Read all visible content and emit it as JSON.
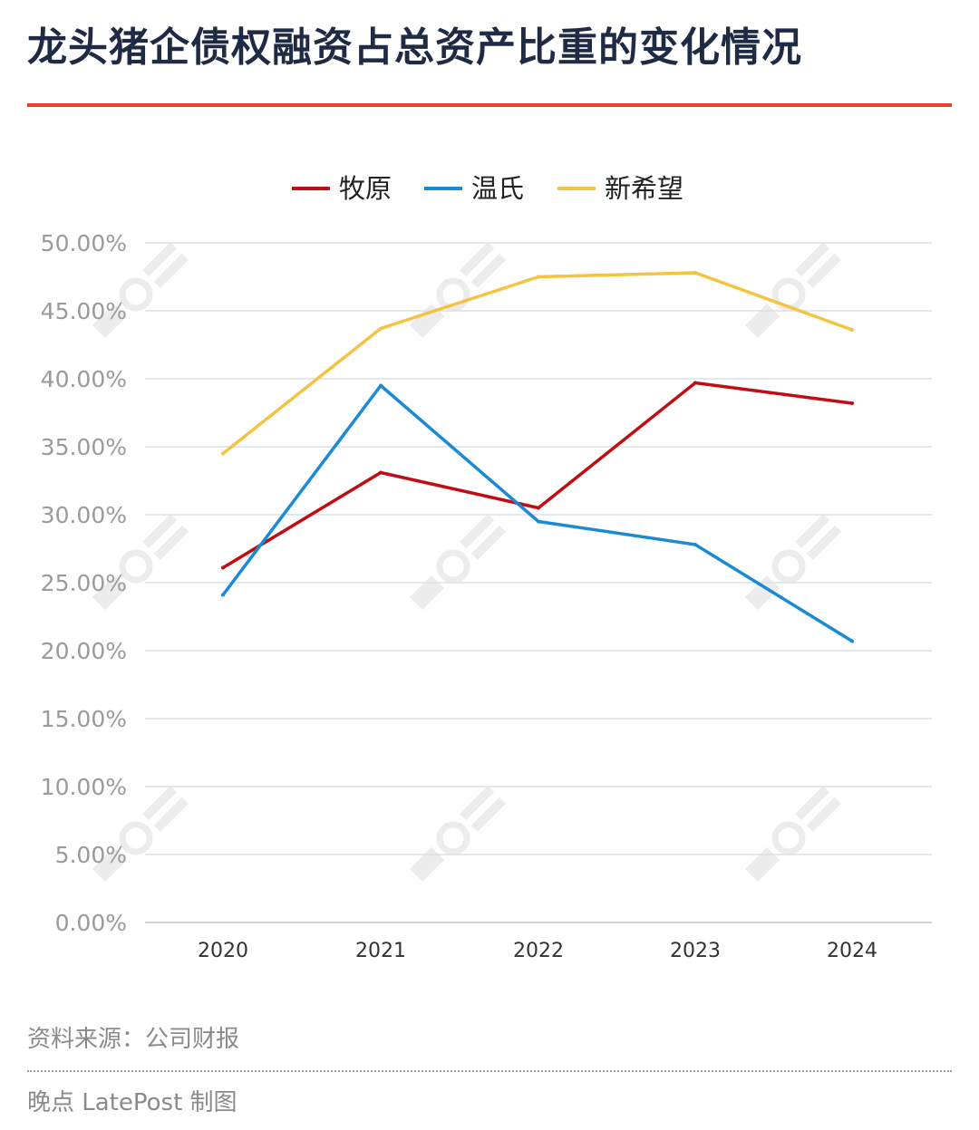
{
  "header": {
    "title": "龙头猪企债权融资占总资产比重的变化情况"
  },
  "footer": {
    "source": "资料来源：公司财报",
    "credit": "晚点 LatePost 制图"
  },
  "chart_data": {
    "type": "line",
    "title": "龙头猪企债权融资占总资产比重的变化情况",
    "xlabel": "",
    "ylabel": "",
    "categories": [
      "2020",
      "2021",
      "2022",
      "2023",
      "2024"
    ],
    "ylim": [
      0,
      50
    ],
    "yticks": [
      0,
      5,
      10,
      15,
      20,
      25,
      30,
      35,
      40,
      45,
      50
    ],
    "ytick_labels": [
      "0.00%",
      "5.00%",
      "10.00%",
      "15.00%",
      "20.00%",
      "25.00%",
      "30.00%",
      "35.00%",
      "40.00%",
      "45.00%",
      "50.00%"
    ],
    "grid": true,
    "legend_position": "top-center",
    "series": [
      {
        "name": "牧原",
        "color": "#c00d14",
        "values": [
          26.1,
          33.1,
          30.5,
          39.7,
          38.2
        ]
      },
      {
        "name": "温氏",
        "color": "#1a8ad4",
        "values": [
          24.1,
          39.5,
          29.5,
          27.8,
          20.7
        ]
      },
      {
        "name": "新希望",
        "color": "#f5c342",
        "values": [
          34.5,
          43.7,
          47.5,
          47.8,
          43.6
        ]
      }
    ]
  }
}
